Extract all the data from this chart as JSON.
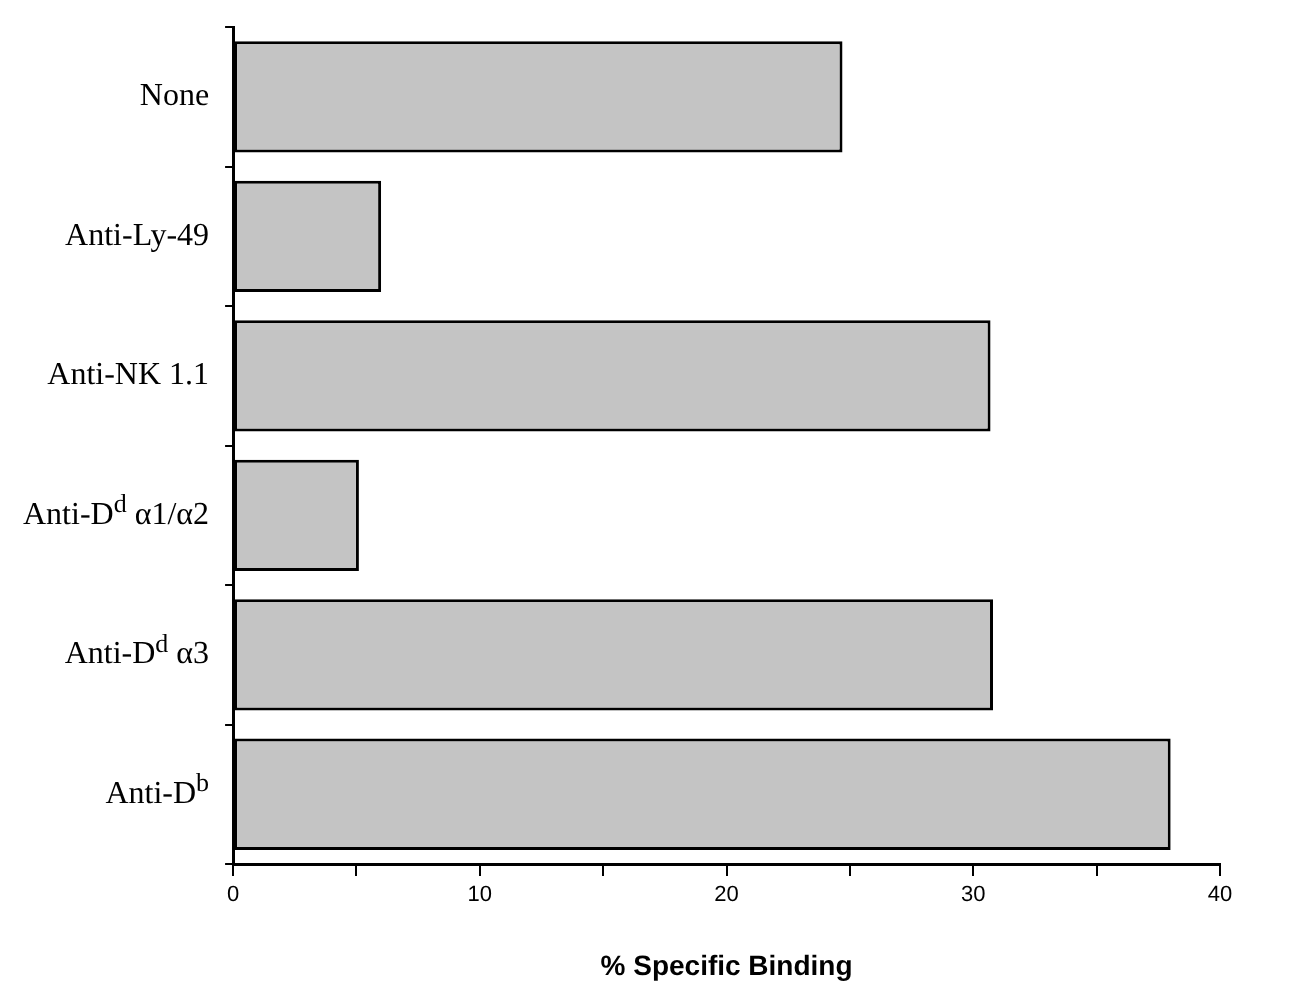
{
  "chart_data": {
    "type": "bar",
    "orientation": "horizontal",
    "xlabel": "% Specific Binding",
    "categories": [
      "None",
      "Anti-Ly-49",
      "Anti-NK 1.1",
      "Anti-D$^{d}$ α1/α2",
      "Anti-D$^{d}$ α3",
      "Anti-D$^{b}$"
    ],
    "values": [
      24.7,
      6.0,
      30.7,
      5.1,
      30.8,
      38.0
    ],
    "color": "#c4c4c4",
    "xlim": [
      0,
      40
    ],
    "xticks": [
      0,
      {
        "value": 5,
        "label": null
      },
      10,
      {
        "value": 15,
        "label": null
      },
      20,
      {
        "value": 25,
        "label": null
      },
      30,
      {
        "value": 35,
        "label": null
      },
      40
    ],
    "grid": false,
    "legend": false
  }
}
